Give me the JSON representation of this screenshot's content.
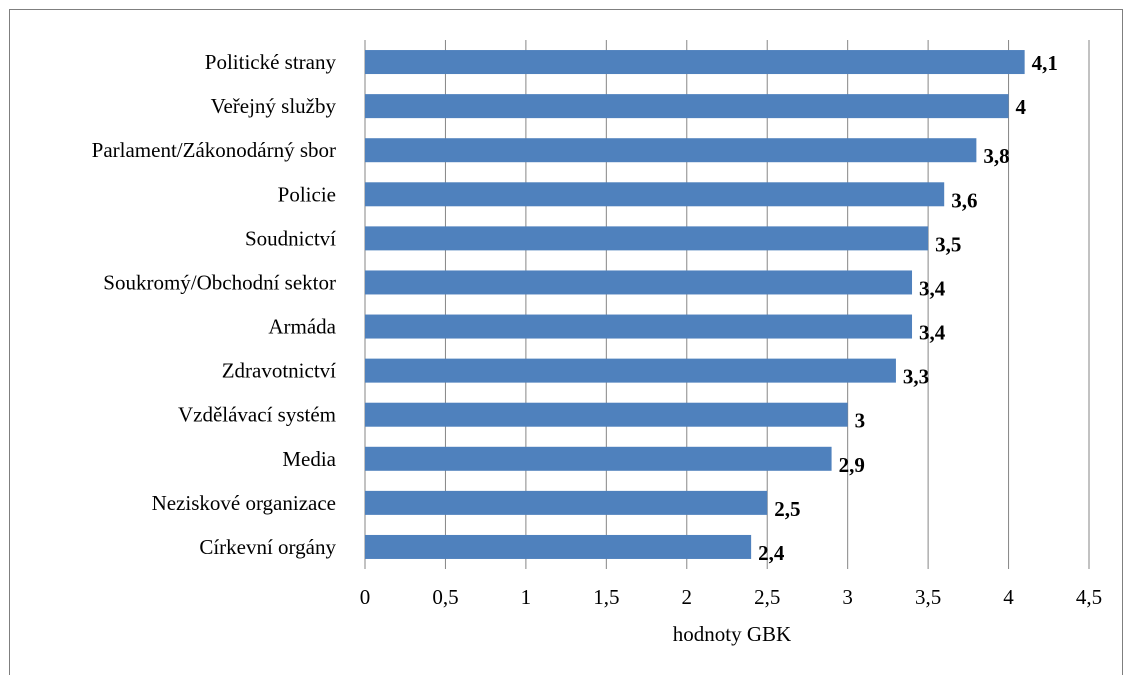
{
  "chart_data": {
    "type": "bar",
    "orientation": "horizontal",
    "categories": [
      "Politické strany",
      "Veřejný služby",
      "Parlament/Zákonodárný sbor",
      "Policie",
      "Soudnictví",
      "Soukromý/Obchodní sektor",
      "Armáda",
      "Zdravotnictví",
      "Vzdělávací systém",
      "Media",
      "Neziskové organizace",
      "Církevní orgány"
    ],
    "values": [
      4.1,
      4.0,
      3.8,
      3.6,
      3.5,
      3.4,
      3.4,
      3.3,
      3.0,
      2.9,
      2.5,
      2.4
    ],
    "value_labels": [
      "4,1",
      "4",
      "3,8",
      "3,6",
      "3,5",
      "3,4",
      "3,4",
      "3,3",
      "3",
      "2,9",
      "2,5",
      "2,4"
    ],
    "xlabel": "hodnoty GBK",
    "xlim": [
      0,
      4.5
    ],
    "xticks": [
      0,
      0.5,
      1,
      1.5,
      2,
      2.5,
      3,
      3.5,
      4,
      4.5
    ],
    "xtick_labels": [
      "0",
      "0,5",
      "1",
      "1,5",
      "2",
      "2,5",
      "3",
      "3,5",
      "4",
      "4,5"
    ],
    "grid": "vertical",
    "bar_color": "#4f81bd",
    "grid_color": "#868686"
  }
}
